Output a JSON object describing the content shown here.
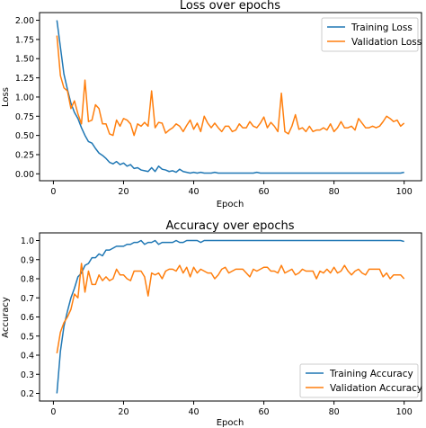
{
  "chart_data": [
    {
      "type": "line",
      "title": "Loss over epochs",
      "xlabel": "Epoch",
      "ylabel": "Loss",
      "xlim": [
        -3.95,
        104.95
      ],
      "ylim": [
        -0.09,
        2.1
      ],
      "xticks": [
        0,
        20,
        40,
        60,
        80,
        100
      ],
      "yticks": [
        0.0,
        0.25,
        0.5,
        0.75,
        1.0,
        1.25,
        1.5,
        1.75,
        2.0
      ],
      "xtick_labels": [
        "0",
        "20",
        "40",
        "60",
        "80",
        "100"
      ],
      "ytick_labels": [
        "0.00",
        "0.25",
        "0.50",
        "0.75",
        "1.00",
        "1.25",
        "1.50",
        "1.75",
        "2.00"
      ],
      "legend_position": "top-right",
      "x": [
        1,
        2,
        3,
        4,
        5,
        6,
        7,
        8,
        9,
        10,
        11,
        12,
        13,
        14,
        15,
        16,
        17,
        18,
        19,
        20,
        21,
        22,
        23,
        24,
        25,
        26,
        27,
        28,
        29,
        30,
        31,
        32,
        33,
        34,
        35,
        36,
        37,
        38,
        39,
        40,
        41,
        42,
        43,
        44,
        45,
        46,
        47,
        48,
        49,
        50,
        51,
        52,
        53,
        54,
        55,
        56,
        57,
        58,
        59,
        60,
        61,
        62,
        63,
        64,
        65,
        66,
        67,
        68,
        69,
        70,
        71,
        72,
        73,
        74,
        75,
        76,
        77,
        78,
        79,
        80,
        81,
        82,
        83,
        84,
        85,
        86,
        87,
        88,
        89,
        90,
        91,
        92,
        93,
        94,
        95,
        96,
        97,
        98,
        99,
        100
      ],
      "series": [
        {
          "name": "Training Loss",
          "color": "#1f77b4",
          "values": [
            2.0,
            1.65,
            1.3,
            1.1,
            0.92,
            0.8,
            0.72,
            0.6,
            0.5,
            0.42,
            0.4,
            0.33,
            0.27,
            0.24,
            0.2,
            0.15,
            0.13,
            0.16,
            0.12,
            0.14,
            0.1,
            0.12,
            0.07,
            0.08,
            0.05,
            0.04,
            0.03,
            0.08,
            0.03,
            0.1,
            0.06,
            0.05,
            0.03,
            0.04,
            0.02,
            0.06,
            0.03,
            0.02,
            0.01,
            0.02,
            0.01,
            0.02,
            0.01,
            0.01,
            0.01,
            0.02,
            0.01,
            0.01,
            0.01,
            0.01,
            0.01,
            0.01,
            0.01,
            0.01,
            0.01,
            0.01,
            0.01,
            0.02,
            0.01,
            0.01,
            0.01,
            0.01,
            0.01,
            0.01,
            0.01,
            0.01,
            0.01,
            0.01,
            0.01,
            0.01,
            0.01,
            0.01,
            0.01,
            0.01,
            0.01,
            0.01,
            0.01,
            0.01,
            0.01,
            0.01,
            0.01,
            0.01,
            0.01,
            0.01,
            0.01,
            0.01,
            0.01,
            0.01,
            0.01,
            0.01,
            0.01,
            0.01,
            0.01,
            0.01,
            0.01,
            0.01,
            0.01,
            0.01,
            0.01,
            0.02
          ]
        },
        {
          "name": "Validation Loss",
          "color": "#ff7f0e",
          "values": [
            1.8,
            1.28,
            1.12,
            1.08,
            0.85,
            0.95,
            0.78,
            0.65,
            1.22,
            0.68,
            0.7,
            0.9,
            0.85,
            0.65,
            0.65,
            0.52,
            0.5,
            0.7,
            0.62,
            0.72,
            0.7,
            0.65,
            0.5,
            0.65,
            0.62,
            0.67,
            0.62,
            1.08,
            0.6,
            0.67,
            0.66,
            0.53,
            0.57,
            0.6,
            0.65,
            0.62,
            0.55,
            0.63,
            0.7,
            0.58,
            0.66,
            0.55,
            0.75,
            0.66,
            0.6,
            0.66,
            0.6,
            0.55,
            0.62,
            0.62,
            0.55,
            0.57,
            0.65,
            0.6,
            0.6,
            0.68,
            0.62,
            0.6,
            0.66,
            0.74,
            0.6,
            0.67,
            0.62,
            0.55,
            1.05,
            0.55,
            0.52,
            0.62,
            0.77,
            0.58,
            0.6,
            0.55,
            0.62,
            0.55,
            0.57,
            0.57,
            0.6,
            0.57,
            0.65,
            0.55,
            0.6,
            0.68,
            0.6,
            0.6,
            0.62,
            0.57,
            0.72,
            0.66,
            0.6,
            0.6,
            0.62,
            0.6,
            0.62,
            0.68,
            0.75,
            0.72,
            0.68,
            0.7,
            0.62,
            0.66
          ]
        }
      ]
    },
    {
      "type": "line",
      "title": "Accuracy over epochs",
      "xlabel": "Epoch",
      "ylabel": "Accuracy",
      "xlim": [
        -3.95,
        104.95
      ],
      "ylim": [
        0.16,
        1.04
      ],
      "xticks": [
        0,
        20,
        40,
        60,
        80,
        100
      ],
      "yticks": [
        0.2,
        0.3,
        0.4,
        0.5,
        0.6,
        0.7,
        0.8,
        0.9,
        1.0
      ],
      "xtick_labels": [
        "0",
        "20",
        "40",
        "60",
        "80",
        "100"
      ],
      "ytick_labels": [
        "0.2",
        "0.3",
        "0.4",
        "0.5",
        "0.6",
        "0.7",
        "0.8",
        "0.9",
        "1.0"
      ],
      "legend_position": "bottom-right",
      "x": [
        1,
        2,
        3,
        4,
        5,
        6,
        7,
        8,
        9,
        10,
        11,
        12,
        13,
        14,
        15,
        16,
        17,
        18,
        19,
        20,
        21,
        22,
        23,
        24,
        25,
        26,
        27,
        28,
        29,
        30,
        31,
        32,
        33,
        34,
        35,
        36,
        37,
        38,
        39,
        40,
        41,
        42,
        43,
        44,
        45,
        46,
        47,
        48,
        49,
        50,
        51,
        52,
        53,
        54,
        55,
        56,
        57,
        58,
        59,
        60,
        61,
        62,
        63,
        64,
        65,
        66,
        67,
        68,
        69,
        70,
        71,
        72,
        73,
        74,
        75,
        76,
        77,
        78,
        79,
        80,
        81,
        82,
        83,
        84,
        85,
        86,
        87,
        88,
        89,
        90,
        91,
        92,
        93,
        94,
        95,
        96,
        97,
        98,
        99,
        100
      ],
      "series": [
        {
          "name": "Training Accuracy",
          "color": "#1f77b4",
          "values": [
            0.2,
            0.42,
            0.55,
            0.63,
            0.7,
            0.75,
            0.81,
            0.83,
            0.87,
            0.88,
            0.91,
            0.91,
            0.93,
            0.92,
            0.95,
            0.95,
            0.96,
            0.97,
            0.97,
            0.97,
            0.98,
            0.98,
            0.99,
            0.99,
            1.0,
            0.98,
            0.99,
            0.99,
            1.0,
            0.98,
            0.99,
            0.99,
            0.99,
            0.99,
            1.0,
            0.99,
            0.99,
            1.0,
            1.0,
            1.0,
            1.0,
            0.99,
            1.0,
            1.0,
            1.0,
            1.0,
            1.0,
            1.0,
            1.0,
            1.0,
            1.0,
            1.0,
            1.0,
            1.0,
            1.0,
            1.0,
            1.0,
            1.0,
            1.0,
            1.0,
            1.0,
            1.0,
            1.0,
            1.0,
            1.0,
            1.0,
            1.0,
            1.0,
            1.0,
            1.0,
            1.0,
            1.0,
            1.0,
            1.0,
            1.0,
            1.0,
            1.0,
            1.0,
            1.0,
            1.0,
            1.0,
            1.0,
            1.0,
            1.0,
            1.0,
            1.0,
            1.0,
            1.0,
            1.0,
            1.0,
            1.0,
            1.0,
            1.0,
            1.0,
            1.0,
            1.0,
            1.0,
            1.0,
            1.0,
            0.995
          ]
        },
        {
          "name": "Validation Accuracy",
          "color": "#ff7f0e",
          "values": [
            0.41,
            0.52,
            0.57,
            0.6,
            0.64,
            0.72,
            0.7,
            0.88,
            0.73,
            0.84,
            0.77,
            0.77,
            0.82,
            0.79,
            0.81,
            0.79,
            0.8,
            0.85,
            0.82,
            0.82,
            0.8,
            0.79,
            0.84,
            0.84,
            0.84,
            0.81,
            0.71,
            0.83,
            0.82,
            0.83,
            0.8,
            0.84,
            0.85,
            0.85,
            0.84,
            0.87,
            0.83,
            0.86,
            0.81,
            0.86,
            0.83,
            0.85,
            0.84,
            0.83,
            0.83,
            0.8,
            0.82,
            0.85,
            0.86,
            0.83,
            0.84,
            0.85,
            0.85,
            0.85,
            0.83,
            0.81,
            0.85,
            0.84,
            0.85,
            0.86,
            0.86,
            0.84,
            0.84,
            0.83,
            0.87,
            0.83,
            0.84,
            0.85,
            0.82,
            0.83,
            0.85,
            0.84,
            0.84,
            0.84,
            0.8,
            0.84,
            0.83,
            0.85,
            0.83,
            0.86,
            0.83,
            0.84,
            0.87,
            0.84,
            0.82,
            0.84,
            0.85,
            0.83,
            0.82,
            0.85,
            0.85,
            0.85,
            0.85,
            0.81,
            0.83,
            0.8,
            0.82,
            0.82,
            0.82,
            0.8
          ]
        }
      ]
    }
  ]
}
